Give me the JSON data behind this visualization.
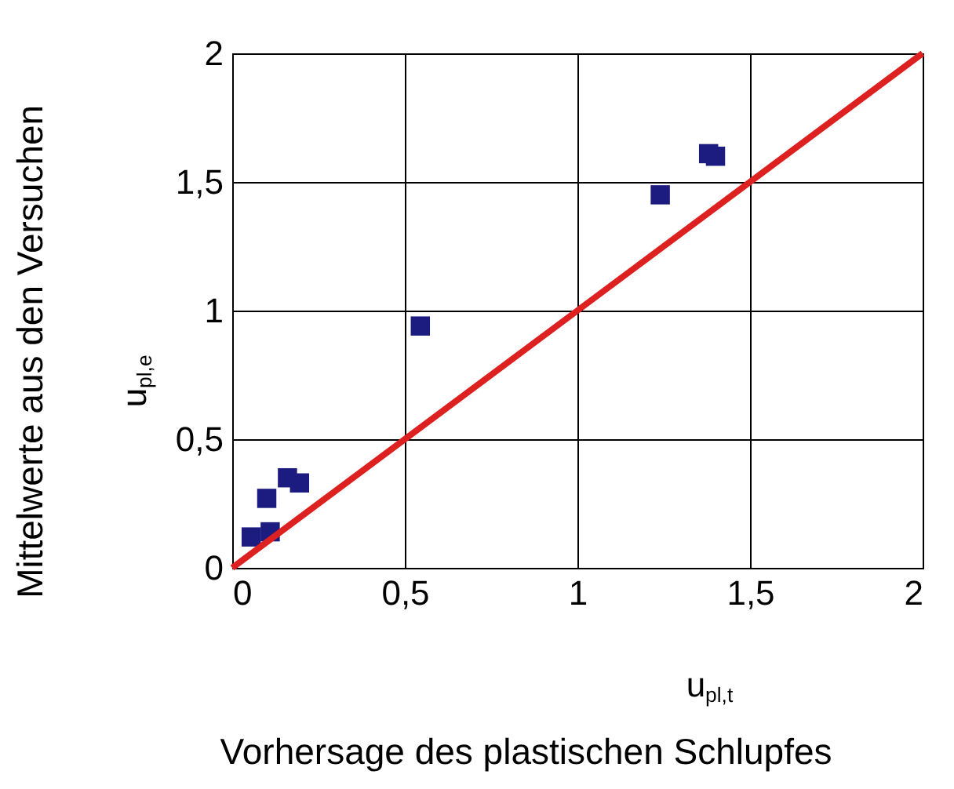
{
  "chart_data": {
    "type": "scatter",
    "xlabel": "u$_{pl,t}$\nVorhersage des plastischen Schlupfes",
    "ylabel": "Mittelwerte aus den Versuchen\nu$_{pl,e}$",
    "xlim": [
      0,
      2
    ],
    "ylim": [
      0,
      2
    ],
    "xticks": [
      0,
      {
        "value": 0.5,
        "label": "0,5"
      },
      1,
      {
        "value": 1.5,
        "label": "1,5"
      },
      2
    ],
    "yticks": [
      0,
      {
        "value": 0.5,
        "label": "0,5"
      },
      1,
      {
        "value": 1.5,
        "label": "1,5"
      },
      2
    ],
    "grid": true,
    "series": [
      {
        "marker": "square",
        "color": "#1c1c80",
        "x": [
          0.055,
          0.11,
          0.1,
          0.16,
          0.195,
          0.545,
          1.24,
          1.38,
          1.4
        ],
        "values": [
          0.12,
          0.14,
          0.27,
          0.35,
          0.33,
          0.94,
          1.45,
          1.61,
          1.6
        ]
      },
      {
        "type": "line",
        "line_style": "solid",
        "color": "#dd2020",
        "x": [
          0,
          2
        ],
        "values": [
          0,
          2
        ]
      }
    ]
  }
}
